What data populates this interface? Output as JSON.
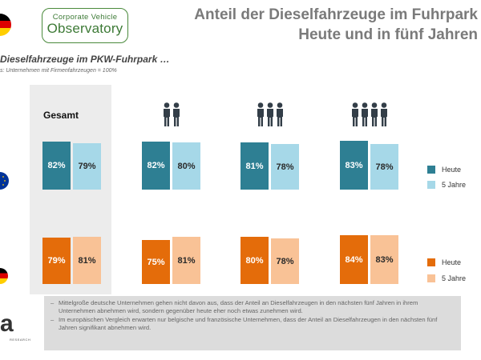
{
  "header": {
    "title_line1": "Anteil der Dieselfahrzeuge im Fuhrpark",
    "title_line2": "Heute und in fünf Jahren"
  },
  "logo": {
    "line1": "Corporate Vehicle",
    "line2": "Observatory"
  },
  "subtitle": "Dieselfahrzeuge im PKW-Fuhrpark …",
  "basis": "s: Unternehmen mit Firmenfahrzeugen  = 100%",
  "gesamt_label": "Gesamt",
  "icon_names": [
    "person-icon"
  ],
  "colors": {
    "europe_today": "#2e7f93",
    "europe_5y": "#a6d8e8",
    "germany_today": "#e46c0a",
    "germany_5y": "#f9c296",
    "flag_black": "#000000",
    "flag_red": "#dd0000",
    "flag_gold": "#ffce00",
    "eu_blue": "#003399"
  },
  "chart_data": {
    "type": "bar",
    "title": "Anteil der Dieselfahrzeuge im Fuhrpark – Heute und in fünf Jahren",
    "categories": [
      "Gesamt",
      "2 Personen",
      "3 Personen",
      "4 Personen"
    ],
    "unit": "%",
    "groups": [
      {
        "region": "Europa",
        "series": [
          {
            "name": "Heute",
            "values": [
              82,
              82,
              81,
              83
            ],
            "labels": [
              "82%",
              "82%",
              "81%",
              "83%"
            ]
          },
          {
            "name": "5 Jahre",
            "values": [
              79,
              80,
              78,
              78
            ],
            "labels": [
              "79%",
              "80%",
              "78%",
              "78%"
            ]
          }
        ]
      },
      {
        "region": "Deutschland",
        "series": [
          {
            "name": "Heute",
            "values": [
              79,
              75,
              80,
              84
            ],
            "labels": [
              "79%",
              "75%",
              "80%",
              "84%"
            ]
          },
          {
            "name": "5 Jahre",
            "values": [
              81,
              81,
              78,
              83
            ],
            "labels": [
              "81%",
              "81%",
              "78%",
              "83%"
            ]
          }
        ]
      }
    ],
    "ylim": [
      0,
      100
    ],
    "legend_position": "right",
    "person_icons": [
      0,
      2,
      3,
      4
    ]
  },
  "legend": {
    "europe": [
      {
        "label": "Heute"
      },
      {
        "label": "5 Jahre"
      }
    ],
    "germany": [
      {
        "label": "Heute"
      },
      {
        "label": "5 Jahre"
      }
    ]
  },
  "notes": [
    "Mittelgroße deutsche Unternehmen gehen nicht davon aus, dass der Anteil an Dieselfahrzeugen in den nächsten fünf Jahren in ihrem Unternehmen abnehmen wird, sondern gegenüber heute eher noch etwas zunehmen wird.",
    "Im europäischen Vergleich erwarten nur belgische und französische Unternehmen, dass der Anteil an Dieselfahrzeugen in den nächsten fünf Jahren signifikant abnehmen wird."
  ],
  "brand": {
    "letter": "a",
    "tagline": "RESEARCH"
  }
}
